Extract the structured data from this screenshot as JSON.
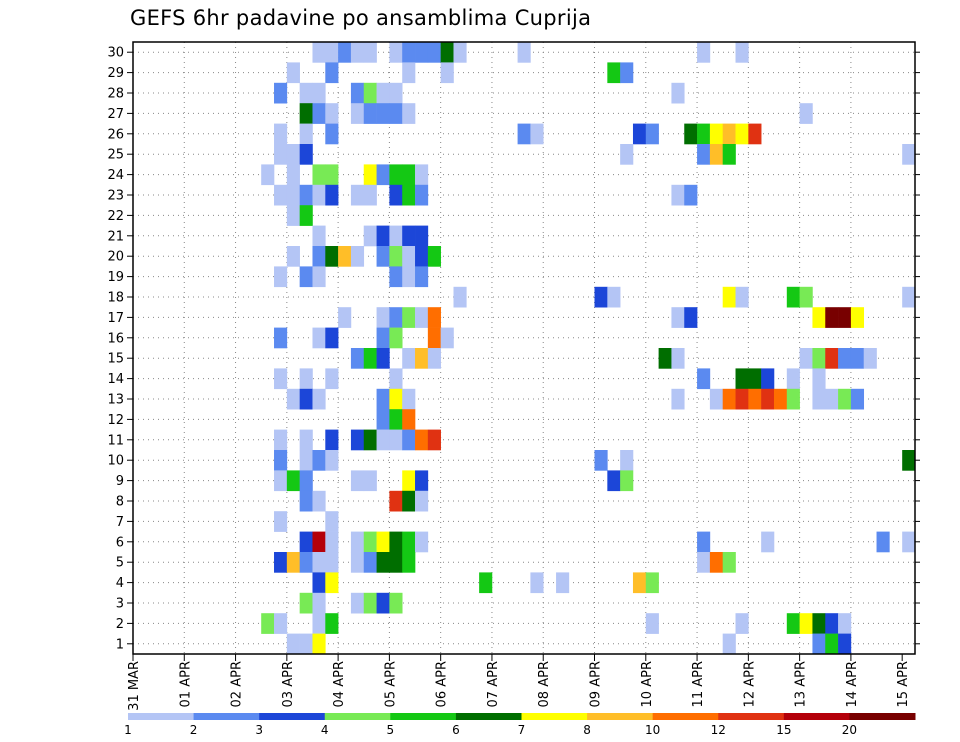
{
  "chart_data": {
    "type": "heatmap",
    "title": "GEFS 6hr padavine po ansamblima Cuprija",
    "xlabel": "",
    "ylabel": "",
    "x_tick_labels": [
      "31 MAR",
      "01 APR",
      "02 APR",
      "03 APR",
      "04 APR",
      "05 APR",
      "06 APR",
      "07 APR",
      "08 APR",
      "09 APR",
      "10 APR",
      "11 APR",
      "12 APR",
      "13 APR",
      "14 APR",
      "15 APR"
    ],
    "x_steps_total": 61,
    "y_tick_labels": [
      "1",
      "2",
      "3",
      "4",
      "5",
      "6",
      "7",
      "8",
      "9",
      "10",
      "11",
      "12",
      "13",
      "14",
      "15",
      "16",
      "17",
      "18",
      "19",
      "20",
      "21",
      "22",
      "23",
      "24",
      "25",
      "26",
      "27",
      "28",
      "29",
      "30"
    ],
    "ylim": [
      0,
      30
    ],
    "grid": true,
    "colorbar": {
      "labels": [
        "1",
        "2",
        "3",
        "4",
        "5",
        "6",
        "7",
        "8",
        "10",
        "12",
        "15",
        "20"
      ],
      "colors": [
        "#b4c5f5",
        "#5b8af0",
        "#1c46d8",
        "#78ea55",
        "#14c814",
        "#006e00",
        "#ffff00",
        "#ffbe28",
        "#ff6e00",
        "#e03212",
        "#b4000a",
        "#780000"
      ],
      "position": "bottom"
    },
    "cells": [
      {
        "m": 30,
        "t": 14,
        "v": 1
      },
      {
        "m": 30,
        "t": 15,
        "v": 1
      },
      {
        "m": 30,
        "t": 16,
        "v": 2
      },
      {
        "m": 30,
        "t": 17,
        "v": 1
      },
      {
        "m": 30,
        "t": 18,
        "v": 1
      },
      {
        "m": 30,
        "t": 20,
        "v": 1
      },
      {
        "m": 30,
        "t": 21,
        "v": 2
      },
      {
        "m": 30,
        "t": 22,
        "v": 2
      },
      {
        "m": 30,
        "t": 23,
        "v": 2
      },
      {
        "m": 30,
        "t": 24,
        "v": 6
      },
      {
        "m": 30,
        "t": 25,
        "v": 1
      },
      {
        "m": 30,
        "t": 30,
        "v": 1
      },
      {
        "m": 30,
        "t": 44,
        "v": 1
      },
      {
        "m": 30,
        "t": 47,
        "v": 1
      },
      {
        "m": 29,
        "t": 12,
        "v": 1
      },
      {
        "m": 29,
        "t": 15,
        "v": 2
      },
      {
        "m": 29,
        "t": 21,
        "v": 1
      },
      {
        "m": 29,
        "t": 24,
        "v": 1
      },
      {
        "m": 29,
        "t": 37,
        "v": 5
      },
      {
        "m": 29,
        "t": 38,
        "v": 2
      },
      {
        "m": 28,
        "t": 11,
        "v": 2
      },
      {
        "m": 28,
        "t": 13,
        "v": 1
      },
      {
        "m": 28,
        "t": 14,
        "v": 1
      },
      {
        "m": 28,
        "t": 17,
        "v": 2
      },
      {
        "m": 28,
        "t": 18,
        "v": 4
      },
      {
        "m": 28,
        "t": 19,
        "v": 1
      },
      {
        "m": 28,
        "t": 20,
        "v": 1
      },
      {
        "m": 28,
        "t": 42,
        "v": 1
      },
      {
        "m": 27,
        "t": 13,
        "v": 6
      },
      {
        "m": 27,
        "t": 14,
        "v": 2
      },
      {
        "m": 27,
        "t": 15,
        "v": 1
      },
      {
        "m": 27,
        "t": 17,
        "v": 1
      },
      {
        "m": 27,
        "t": 18,
        "v": 2
      },
      {
        "m": 27,
        "t": 19,
        "v": 2
      },
      {
        "m": 27,
        "t": 20,
        "v": 2
      },
      {
        "m": 27,
        "t": 21,
        "v": 1
      },
      {
        "m": 27,
        "t": 52,
        "v": 1
      },
      {
        "m": 26,
        "t": 11,
        "v": 1
      },
      {
        "m": 26,
        "t": 13,
        "v": 1
      },
      {
        "m": 26,
        "t": 15,
        "v": 2
      },
      {
        "m": 26,
        "t": 30,
        "v": 2
      },
      {
        "m": 26,
        "t": 31,
        "v": 1
      },
      {
        "m": 26,
        "t": 39,
        "v": 3
      },
      {
        "m": 26,
        "t": 40,
        "v": 2
      },
      {
        "m": 26,
        "t": 43,
        "v": 6
      },
      {
        "m": 26,
        "t": 44,
        "v": 5
      },
      {
        "m": 26,
        "t": 45,
        "v": 7
      },
      {
        "m": 26,
        "t": 46,
        "v": 8
      },
      {
        "m": 26,
        "t": 47,
        "v": 7
      },
      {
        "m": 26,
        "t": 48,
        "v": 12
      },
      {
        "m": 25,
        "t": 11,
        "v": 1
      },
      {
        "m": 25,
        "t": 12,
        "v": 1
      },
      {
        "m": 25,
        "t": 13,
        "v": 3
      },
      {
        "m": 25,
        "t": 38,
        "v": 1
      },
      {
        "m": 25,
        "t": 44,
        "v": 2
      },
      {
        "m": 25,
        "t": 45,
        "v": 8
      },
      {
        "m": 25,
        "t": 46,
        "v": 5
      },
      {
        "m": 25,
        "t": 60,
        "v": 1
      },
      {
        "m": 24,
        "t": 10,
        "v": 1
      },
      {
        "m": 24,
        "t": 12,
        "v": 1
      },
      {
        "m": 24,
        "t": 14,
        "v": 4
      },
      {
        "m": 24,
        "t": 15,
        "v": 4
      },
      {
        "m": 24,
        "t": 18,
        "v": 7
      },
      {
        "m": 24,
        "t": 19,
        "v": 2
      },
      {
        "m": 24,
        "t": 20,
        "v": 5
      },
      {
        "m": 24,
        "t": 21,
        "v": 5
      },
      {
        "m": 24,
        "t": 22,
        "v": 1
      },
      {
        "m": 23,
        "t": 11,
        "v": 1
      },
      {
        "m": 23,
        "t": 12,
        "v": 1
      },
      {
        "m": 23,
        "t": 13,
        "v": 2
      },
      {
        "m": 23,
        "t": 14,
        "v": 1
      },
      {
        "m": 23,
        "t": 15,
        "v": 3
      },
      {
        "m": 23,
        "t": 17,
        "v": 1
      },
      {
        "m": 23,
        "t": 18,
        "v": 1
      },
      {
        "m": 23,
        "t": 20,
        "v": 3
      },
      {
        "m": 23,
        "t": 21,
        "v": 5
      },
      {
        "m": 23,
        "t": 22,
        "v": 2
      },
      {
        "m": 23,
        "t": 42,
        "v": 1
      },
      {
        "m": 23,
        "t": 43,
        "v": 2
      },
      {
        "m": 22,
        "t": 12,
        "v": 1
      },
      {
        "m": 22,
        "t": 13,
        "v": 5
      },
      {
        "m": 21,
        "t": 14,
        "v": 1
      },
      {
        "m": 21,
        "t": 18,
        "v": 1
      },
      {
        "m": 21,
        "t": 19,
        "v": 3
      },
      {
        "m": 21,
        "t": 20,
        "v": 1
      },
      {
        "m": 21,
        "t": 21,
        "v": 3
      },
      {
        "m": 21,
        "t": 22,
        "v": 3
      },
      {
        "m": 20,
        "t": 12,
        "v": 1
      },
      {
        "m": 20,
        "t": 14,
        "v": 2
      },
      {
        "m": 20,
        "t": 15,
        "v": 6
      },
      {
        "m": 20,
        "t": 16,
        "v": 8
      },
      {
        "m": 20,
        "t": 17,
        "v": 1
      },
      {
        "m": 20,
        "t": 19,
        "v": 2
      },
      {
        "m": 20,
        "t": 20,
        "v": 4
      },
      {
        "m": 20,
        "t": 21,
        "v": 1
      },
      {
        "m": 20,
        "t": 22,
        "v": 3
      },
      {
        "m": 20,
        "t": 23,
        "v": 5
      },
      {
        "m": 19,
        "t": 11,
        "v": 1
      },
      {
        "m": 19,
        "t": 13,
        "v": 2
      },
      {
        "m": 19,
        "t": 14,
        "v": 1
      },
      {
        "m": 19,
        "t": 20,
        "v": 2
      },
      {
        "m": 19,
        "t": 21,
        "v": 1
      },
      {
        "m": 19,
        "t": 22,
        "v": 2
      },
      {
        "m": 18,
        "t": 25,
        "v": 1
      },
      {
        "m": 18,
        "t": 36,
        "v": 3
      },
      {
        "m": 18,
        "t": 37,
        "v": 1
      },
      {
        "m": 18,
        "t": 46,
        "v": 7
      },
      {
        "m": 18,
        "t": 47,
        "v": 1
      },
      {
        "m": 18,
        "t": 51,
        "v": 5
      },
      {
        "m": 18,
        "t": 52,
        "v": 4
      },
      {
        "m": 18,
        "t": 60,
        "v": 1
      },
      {
        "m": 17,
        "t": 16,
        "v": 1
      },
      {
        "m": 17,
        "t": 19,
        "v": 1
      },
      {
        "m": 17,
        "t": 20,
        "v": 2
      },
      {
        "m": 17,
        "t": 21,
        "v": 4
      },
      {
        "m": 17,
        "t": 22,
        "v": 1
      },
      {
        "m": 17,
        "t": 23,
        "v": 10
      },
      {
        "m": 17,
        "t": 42,
        "v": 1
      },
      {
        "m": 17,
        "t": 43,
        "v": 3
      },
      {
        "m": 17,
        "t": 53,
        "v": 7
      },
      {
        "m": 17,
        "t": 54,
        "v": 20
      },
      {
        "m": 17,
        "t": 55,
        "v": 20
      },
      {
        "m": 17,
        "t": 56,
        "v": 7
      },
      {
        "m": 16,
        "t": 11,
        "v": 2
      },
      {
        "m": 16,
        "t": 14,
        "v": 1
      },
      {
        "m": 16,
        "t": 15,
        "v": 3
      },
      {
        "m": 16,
        "t": 19,
        "v": 2
      },
      {
        "m": 16,
        "t": 20,
        "v": 4
      },
      {
        "m": 16,
        "t": 23,
        "v": 10
      },
      {
        "m": 16,
        "t": 24,
        "v": 1
      },
      {
        "m": 15,
        "t": 17,
        "v": 2
      },
      {
        "m": 15,
        "t": 18,
        "v": 5
      },
      {
        "m": 15,
        "t": 19,
        "v": 3
      },
      {
        "m": 15,
        "t": 21,
        "v": 1
      },
      {
        "m": 15,
        "t": 22,
        "v": 8
      },
      {
        "m": 15,
        "t": 23,
        "v": 1
      },
      {
        "m": 15,
        "t": 41,
        "v": 6
      },
      {
        "m": 15,
        "t": 42,
        "v": 1
      },
      {
        "m": 15,
        "t": 52,
        "v": 1
      },
      {
        "m": 15,
        "t": 53,
        "v": 4
      },
      {
        "m": 15,
        "t": 54,
        "v": 12
      },
      {
        "m": 15,
        "t": 55,
        "v": 2
      },
      {
        "m": 15,
        "t": 56,
        "v": 2
      },
      {
        "m": 15,
        "t": 57,
        "v": 1
      },
      {
        "m": 14,
        "t": 11,
        "v": 1
      },
      {
        "m": 14,
        "t": 13,
        "v": 1
      },
      {
        "m": 14,
        "t": 15,
        "v": 1
      },
      {
        "m": 14,
        "t": 20,
        "v": 1
      },
      {
        "m": 14,
        "t": 44,
        "v": 2
      },
      {
        "m": 14,
        "t": 47,
        "v": 6
      },
      {
        "m": 14,
        "t": 48,
        "v": 6
      },
      {
        "m": 14,
        "t": 49,
        "v": 3
      },
      {
        "m": 14,
        "t": 51,
        "v": 1
      },
      {
        "m": 14,
        "t": 53,
        "v": 1
      },
      {
        "m": 13,
        "t": 12,
        "v": 1
      },
      {
        "m": 13,
        "t": 13,
        "v": 3
      },
      {
        "m": 13,
        "t": 14,
        "v": 1
      },
      {
        "m": 13,
        "t": 19,
        "v": 2
      },
      {
        "m": 13,
        "t": 20,
        "v": 7
      },
      {
        "m": 13,
        "t": 21,
        "v": 1
      },
      {
        "m": 13,
        "t": 42,
        "v": 1
      },
      {
        "m": 13,
        "t": 45,
        "v": 1
      },
      {
        "m": 13,
        "t": 46,
        "v": 10
      },
      {
        "m": 13,
        "t": 47,
        "v": 12
      },
      {
        "m": 13,
        "t": 48,
        "v": 10
      },
      {
        "m": 13,
        "t": 49,
        "v": 12
      },
      {
        "m": 13,
        "t": 50,
        "v": 10
      },
      {
        "m": 13,
        "t": 51,
        "v": 4
      },
      {
        "m": 13,
        "t": 53,
        "v": 1
      },
      {
        "m": 13,
        "t": 54,
        "v": 1
      },
      {
        "m": 13,
        "t": 55,
        "v": 4
      },
      {
        "m": 13,
        "t": 56,
        "v": 2
      },
      {
        "m": 12,
        "t": 19,
        "v": 2
      },
      {
        "m": 12,
        "t": 20,
        "v": 5
      },
      {
        "m": 12,
        "t": 21,
        "v": 10
      },
      {
        "m": 11,
        "t": 11,
        "v": 1
      },
      {
        "m": 11,
        "t": 13,
        "v": 1
      },
      {
        "m": 11,
        "t": 15,
        "v": 3
      },
      {
        "m": 11,
        "t": 17,
        "v": 3
      },
      {
        "m": 11,
        "t": 18,
        "v": 6
      },
      {
        "m": 11,
        "t": 19,
        "v": 1
      },
      {
        "m": 11,
        "t": 20,
        "v": 1
      },
      {
        "m": 11,
        "t": 21,
        "v": 2
      },
      {
        "m": 11,
        "t": 22,
        "v": 10
      },
      {
        "m": 11,
        "t": 23,
        "v": 12
      },
      {
        "m": 10,
        "t": 11,
        "v": 2
      },
      {
        "m": 10,
        "t": 13,
        "v": 1
      },
      {
        "m": 10,
        "t": 14,
        "v": 2
      },
      {
        "m": 10,
        "t": 15,
        "v": 1
      },
      {
        "m": 10,
        "t": 36,
        "v": 2
      },
      {
        "m": 10,
        "t": 38,
        "v": 1
      },
      {
        "m": 10,
        "t": 60,
        "v": 6
      },
      {
        "m": 9,
        "t": 11,
        "v": 1
      },
      {
        "m": 9,
        "t": 12,
        "v": 5
      },
      {
        "m": 9,
        "t": 13,
        "v": 2
      },
      {
        "m": 9,
        "t": 17,
        "v": 1
      },
      {
        "m": 9,
        "t": 18,
        "v": 1
      },
      {
        "m": 9,
        "t": 21,
        "v": 7
      },
      {
        "m": 9,
        "t": 22,
        "v": 3
      },
      {
        "m": 9,
        "t": 37,
        "v": 3
      },
      {
        "m": 9,
        "t": 38,
        "v": 4
      },
      {
        "m": 8,
        "t": 13,
        "v": 2
      },
      {
        "m": 8,
        "t": 14,
        "v": 1
      },
      {
        "m": 8,
        "t": 20,
        "v": 12
      },
      {
        "m": 8,
        "t": 21,
        "v": 6
      },
      {
        "m": 8,
        "t": 22,
        "v": 1
      },
      {
        "m": 7,
        "t": 11,
        "v": 1
      },
      {
        "m": 7,
        "t": 15,
        "v": 1
      },
      {
        "m": 6,
        "t": 13,
        "v": 3
      },
      {
        "m": 6,
        "t": 14,
        "v": 15
      },
      {
        "m": 6,
        "t": 15,
        "v": 1
      },
      {
        "m": 6,
        "t": 17,
        "v": 1
      },
      {
        "m": 6,
        "t": 18,
        "v": 4
      },
      {
        "m": 6,
        "t": 19,
        "v": 7
      },
      {
        "m": 6,
        "t": 20,
        "v": 6
      },
      {
        "m": 6,
        "t": 21,
        "v": 5
      },
      {
        "m": 6,
        "t": 22,
        "v": 1
      },
      {
        "m": 6,
        "t": 44,
        "v": 2
      },
      {
        "m": 6,
        "t": 49,
        "v": 1
      },
      {
        "m": 6,
        "t": 58,
        "v": 2
      },
      {
        "m": 6,
        "t": 60,
        "v": 1
      },
      {
        "m": 5,
        "t": 11,
        "v": 3
      },
      {
        "m": 5,
        "t": 12,
        "v": 8
      },
      {
        "m": 5,
        "t": 13,
        "v": 2
      },
      {
        "m": 5,
        "t": 14,
        "v": 1
      },
      {
        "m": 5,
        "t": 15,
        "v": 1
      },
      {
        "m": 5,
        "t": 17,
        "v": 1
      },
      {
        "m": 5,
        "t": 18,
        "v": 2
      },
      {
        "m": 5,
        "t": 19,
        "v": 6
      },
      {
        "m": 5,
        "t": 20,
        "v": 6
      },
      {
        "m": 5,
        "t": 21,
        "v": 5
      },
      {
        "m": 5,
        "t": 44,
        "v": 1
      },
      {
        "m": 5,
        "t": 45,
        "v": 10
      },
      {
        "m": 5,
        "t": 46,
        "v": 4
      },
      {
        "m": 4,
        "t": 14,
        "v": 3
      },
      {
        "m": 4,
        "t": 15,
        "v": 7
      },
      {
        "m": 4,
        "t": 27,
        "v": 5
      },
      {
        "m": 4,
        "t": 31,
        "v": 1
      },
      {
        "m": 4,
        "t": 33,
        "v": 1
      },
      {
        "m": 4,
        "t": 39,
        "v": 8
      },
      {
        "m": 4,
        "t": 40,
        "v": 4
      },
      {
        "m": 3,
        "t": 13,
        "v": 4
      },
      {
        "m": 3,
        "t": 14,
        "v": 1
      },
      {
        "m": 3,
        "t": 17,
        "v": 1
      },
      {
        "m": 3,
        "t": 18,
        "v": 4
      },
      {
        "m": 3,
        "t": 19,
        "v": 3
      },
      {
        "m": 3,
        "t": 20,
        "v": 4
      },
      {
        "m": 2,
        "t": 10,
        "v": 4
      },
      {
        "m": 2,
        "t": 11,
        "v": 1
      },
      {
        "m": 2,
        "t": 14,
        "v": 1
      },
      {
        "m": 2,
        "t": 15,
        "v": 5
      },
      {
        "m": 2,
        "t": 40,
        "v": 1
      },
      {
        "m": 2,
        "t": 47,
        "v": 1
      },
      {
        "m": 2,
        "t": 51,
        "v": 5
      },
      {
        "m": 2,
        "t": 52,
        "v": 7
      },
      {
        "m": 2,
        "t": 53,
        "v": 6
      },
      {
        "m": 2,
        "t": 54,
        "v": 3
      },
      {
        "m": 2,
        "t": 55,
        "v": 1
      },
      {
        "m": 1,
        "t": 12,
        "v": 1
      },
      {
        "m": 1,
        "t": 13,
        "v": 1
      },
      {
        "m": 1,
        "t": 14,
        "v": 7
      },
      {
        "m": 1,
        "t": 46,
        "v": 1
      },
      {
        "m": 1,
        "t": 53,
        "v": 2
      },
      {
        "m": 1,
        "t": 54,
        "v": 5
      },
      {
        "m": 1,
        "t": 55,
        "v": 3
      }
    ]
  }
}
